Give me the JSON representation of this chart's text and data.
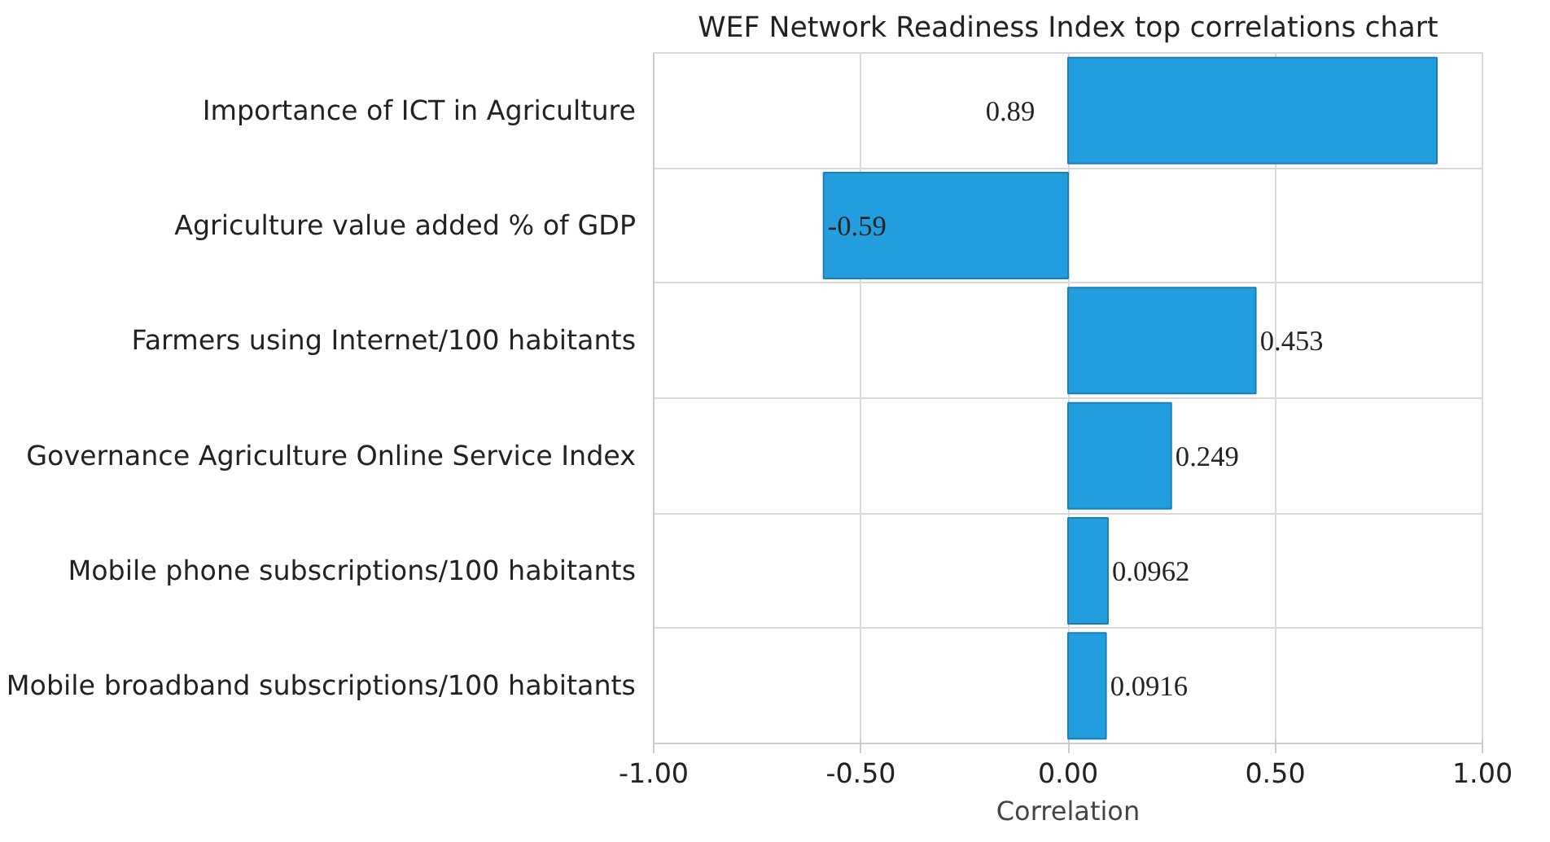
{
  "chart_data": {
    "type": "bar",
    "orientation": "horizontal",
    "title": "WEF Network Readiness Index top correlations chart",
    "xlabel": "Correlation",
    "categories": [
      "Importance of ICT in Agriculture",
      "Agriculture value added % of GDP",
      "Farmers using Internet/100 habitants",
      "Governance Agriculture Online Service Index",
      "Mobile phone subscriptions/100 habitants",
      "Mobile broadband subscriptions/100 habitants"
    ],
    "values": [
      0.89,
      -0.59,
      0.453,
      0.249,
      0.0962,
      0.0916
    ],
    "color": "#229ddd",
    "xlim": [
      -1,
      1
    ],
    "xticks": [
      {
        "value": -1,
        "label": "-1.00"
      },
      {
        "value": -0.5,
        "label": "-0.50"
      },
      {
        "value": 0,
        "label": "0.00"
      },
      {
        "value": 0.5,
        "label": "0.50"
      },
      {
        "value": 1,
        "label": "1.00"
      }
    ],
    "grid": true,
    "data_labels": true
  }
}
